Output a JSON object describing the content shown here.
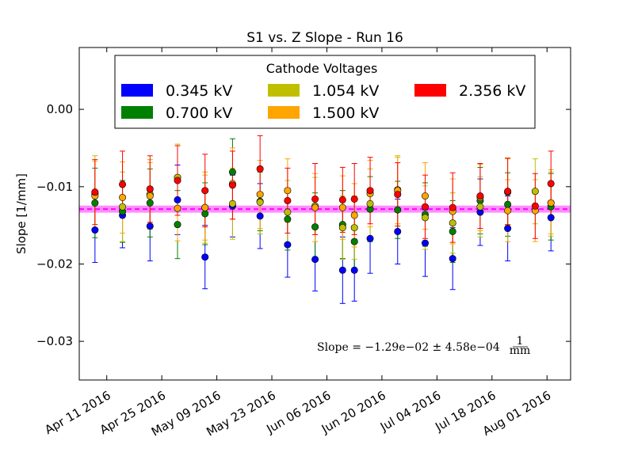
{
  "chart_data": {
    "type": "scatter",
    "title": "S1 vs. Z Slope - Run 16",
    "xlabel": "",
    "ylabel": "Slope [1/mm]",
    "ylim": [
      -0.035,
      0.008
    ],
    "xlim": [
      "2016-04-04",
      "2016-08-07"
    ],
    "y_ticks": [
      0.0,
      -0.01,
      -0.02,
      -0.03
    ],
    "y_tick_labels": [
      "0.00",
      "−0.01",
      "−0.02",
      "−0.03"
    ],
    "x_ticks": [
      "2016-04-11",
      "2016-04-25",
      "2016-05-09",
      "2016-05-23",
      "2016-06-06",
      "2016-06-20",
      "2016-07-04",
      "2016-07-18",
      "2016-08-01"
    ],
    "x_tick_labels": [
      "Apr 11 2016",
      "Apr 25 2016",
      "May 09 2016",
      "May 23 2016",
      "Jun 06 2016",
      "Jun 20 2016",
      "Jul 04 2016",
      "Jul 18 2016",
      "Aug 01 2016"
    ],
    "grid": false,
    "legend": {
      "title": "Cathode Voltages",
      "placement": "top",
      "columns": 3,
      "entries": [
        "0.345 kV",
        "0.700 kV",
        "1.054 kV",
        "1.500 kV",
        "2.356 kV"
      ]
    },
    "fit": {
      "value": -0.0129,
      "uncertainty": 0.000458,
      "color": "#ff00ff",
      "annotation": "Slope = −1.29e−02 ± 4.58e−04"
    },
    "series": [
      {
        "name": "0.345 kV",
        "color": "#0000ff",
        "points": [
          {
            "x": "2016-04-08",
            "y": -0.0156,
            "err": 0.0042
          },
          {
            "x": "2016-04-15",
            "y": -0.0137,
            "err": 0.0042
          },
          {
            "x": "2016-04-22",
            "y": -0.0151,
            "err": 0.0045
          },
          {
            "x": "2016-04-29",
            "y": -0.0117,
            "err": 0.0045
          },
          {
            "x": "2016-05-06",
            "y": -0.0191,
            "err": 0.0041
          },
          {
            "x": "2016-05-13",
            "y": -0.0125,
            "err": 0.004
          },
          {
            "x": "2016-05-20",
            "y": -0.0138,
            "err": 0.0042
          },
          {
            "x": "2016-05-27",
            "y": -0.0175,
            "err": 0.0042
          },
          {
            "x": "2016-06-03",
            "y": -0.0194,
            "err": 0.0041
          },
          {
            "x": "2016-06-10",
            "y": -0.0208,
            "err": 0.0043
          },
          {
            "x": "2016-06-13",
            "y": -0.0208,
            "err": 0.004
          },
          {
            "x": "2016-06-17",
            "y": -0.0167,
            "err": 0.0045
          },
          {
            "x": "2016-06-24",
            "y": -0.0158,
            "err": 0.0042
          },
          {
            "x": "2016-07-01",
            "y": -0.0173,
            "err": 0.0043
          },
          {
            "x": "2016-07-08",
            "y": -0.0193,
            "err": 0.004
          },
          {
            "x": "2016-07-15",
            "y": -0.0133,
            "err": 0.0043
          },
          {
            "x": "2016-07-22",
            "y": -0.0154,
            "err": 0.0042
          },
          {
            "x": "2016-08-02",
            "y": -0.014,
            "err": 0.0043
          }
        ]
      },
      {
        "name": "0.700 kV",
        "color": "#008000",
        "points": [
          {
            "x": "2016-04-08",
            "y": -0.0121,
            "err": 0.0045
          },
          {
            "x": "2016-04-15",
            "y": -0.0132,
            "err": 0.004
          },
          {
            "x": "2016-04-22",
            "y": -0.0121,
            "err": 0.0044
          },
          {
            "x": "2016-04-29",
            "y": -0.0149,
            "err": 0.0044
          },
          {
            "x": "2016-05-06",
            "y": -0.0135,
            "err": 0.004
          },
          {
            "x": "2016-05-13",
            "y": -0.0081,
            "err": 0.0043
          },
          {
            "x": "2016-05-20",
            "y": -0.0119,
            "err": 0.0038
          },
          {
            "x": "2016-05-27",
            "y": -0.0142,
            "err": 0.004
          },
          {
            "x": "2016-06-03",
            "y": -0.0152,
            "err": 0.0044
          },
          {
            "x": "2016-06-10",
            "y": -0.0149,
            "err": 0.0044
          },
          {
            "x": "2016-06-13",
            "y": -0.0171,
            "err": 0.0038
          },
          {
            "x": "2016-06-17",
            "y": -0.0129,
            "err": 0.0042
          },
          {
            "x": "2016-06-24",
            "y": -0.013,
            "err": 0.0037
          },
          {
            "x": "2016-07-01",
            "y": -0.0136,
            "err": 0.0041
          },
          {
            "x": "2016-07-08",
            "y": -0.0158,
            "err": 0.004
          },
          {
            "x": "2016-07-15",
            "y": -0.0118,
            "err": 0.0043
          },
          {
            "x": "2016-07-22",
            "y": -0.0123,
            "err": 0.0041
          },
          {
            "x": "2016-08-02",
            "y": -0.0126,
            "err": 0.0043
          }
        ]
      },
      {
        "name": "1.054 kV",
        "color": "#bfbf00",
        "points": [
          {
            "x": "2016-04-08",
            "y": -0.0109,
            "err": 0.0049
          },
          {
            "x": "2016-04-15",
            "y": -0.0126,
            "err": 0.0045
          },
          {
            "x": "2016-04-22",
            "y": -0.011,
            "err": 0.0045
          },
          {
            "x": "2016-04-29",
            "y": -0.0088,
            "err": 0.0043
          },
          {
            "x": "2016-05-06",
            "y": -0.0127,
            "err": 0.0046
          },
          {
            "x": "2016-05-13",
            "y": -0.0122,
            "err": 0.0046
          },
          {
            "x": "2016-05-20",
            "y": -0.012,
            "err": 0.0041
          },
          {
            "x": "2016-05-27",
            "y": -0.0133,
            "err": 0.0041
          },
          {
            "x": "2016-06-03",
            "y": -0.0125,
            "err": 0.0037
          },
          {
            "x": "2016-06-10",
            "y": -0.0153,
            "err": 0.0041
          },
          {
            "x": "2016-06-13",
            "y": -0.0153,
            "err": 0.0041
          },
          {
            "x": "2016-06-17",
            "y": -0.0122,
            "err": 0.0045
          },
          {
            "x": "2016-06-24",
            "y": -0.0104,
            "err": 0.0044
          },
          {
            "x": "2016-07-01",
            "y": -0.014,
            "err": 0.0041
          },
          {
            "x": "2016-07-08",
            "y": -0.0147,
            "err": 0.0039
          },
          {
            "x": "2016-07-15",
            "y": -0.0126,
            "err": 0.0039
          },
          {
            "x": "2016-07-22",
            "y": -0.0107,
            "err": 0.0043
          },
          {
            "x": "2016-07-29",
            "y": -0.0106,
            "err": 0.0042
          },
          {
            "x": "2016-08-02",
            "y": -0.0121,
            "err": 0.0043
          }
        ]
      },
      {
        "name": "1.500 kV",
        "color": "#ffa500",
        "points": [
          {
            "x": "2016-04-08",
            "y": -0.0112,
            "err": 0.0045
          },
          {
            "x": "2016-04-15",
            "y": -0.0114,
            "err": 0.0046
          },
          {
            "x": "2016-04-22",
            "y": -0.0112,
            "err": 0.0043
          },
          {
            "x": "2016-04-29",
            "y": -0.0128,
            "err": 0.0042
          },
          {
            "x": "2016-05-06",
            "y": -0.0127,
            "err": 0.0042
          },
          {
            "x": "2016-05-13",
            "y": -0.0096,
            "err": 0.0046
          },
          {
            "x": "2016-05-20",
            "y": -0.011,
            "err": 0.0044
          },
          {
            "x": "2016-05-27",
            "y": -0.0105,
            "err": 0.0041
          },
          {
            "x": "2016-06-03",
            "y": -0.0127,
            "err": 0.0044
          },
          {
            "x": "2016-06-10",
            "y": -0.0127,
            "err": 0.0041
          },
          {
            "x": "2016-06-13",
            "y": -0.0137,
            "err": 0.0041
          },
          {
            "x": "2016-06-17",
            "y": -0.0109,
            "err": 0.0043
          },
          {
            "x": "2016-06-24",
            "y": -0.0105,
            "err": 0.0043
          },
          {
            "x": "2016-07-01",
            "y": -0.0112,
            "err": 0.0043
          },
          {
            "x": "2016-07-08",
            "y": -0.0132,
            "err": 0.0042
          },
          {
            "x": "2016-07-15",
            "y": -0.0114,
            "err": 0.0043
          },
          {
            "x": "2016-07-22",
            "y": -0.0131,
            "err": 0.004
          },
          {
            "x": "2016-07-29",
            "y": -0.0131,
            "err": 0.004
          },
          {
            "x": "2016-08-02",
            "y": -0.0121,
            "err": 0.004
          }
        ]
      },
      {
        "name": "2.356 kV",
        "color": "#ff0000",
        "points": [
          {
            "x": "2016-04-08",
            "y": -0.0107,
            "err": 0.0042
          },
          {
            "x": "2016-04-15",
            "y": -0.0097,
            "err": 0.0043
          },
          {
            "x": "2016-04-22",
            "y": -0.0103,
            "err": 0.0043
          },
          {
            "x": "2016-04-29",
            "y": -0.0092,
            "err": 0.0045
          },
          {
            "x": "2016-05-06",
            "y": -0.0105,
            "err": 0.0047
          },
          {
            "x": "2016-05-13",
            "y": -0.0098,
            "err": 0.0044
          },
          {
            "x": "2016-05-20",
            "y": -0.0077,
            "err": 0.0043
          },
          {
            "x": "2016-05-27",
            "y": -0.0118,
            "err": 0.0042
          },
          {
            "x": "2016-06-03",
            "y": -0.0116,
            "err": 0.0046
          },
          {
            "x": "2016-06-10",
            "y": -0.0117,
            "err": 0.0042
          },
          {
            "x": "2016-06-13",
            "y": -0.0116,
            "err": 0.0046
          },
          {
            "x": "2016-06-17",
            "y": -0.0105,
            "err": 0.0043
          },
          {
            "x": "2016-06-24",
            "y": -0.011,
            "err": 0.0041
          },
          {
            "x": "2016-07-01",
            "y": -0.0126,
            "err": 0.0041
          },
          {
            "x": "2016-07-08",
            "y": -0.0127,
            "err": 0.0045
          },
          {
            "x": "2016-07-15",
            "y": -0.0112,
            "err": 0.0042
          },
          {
            "x": "2016-07-22",
            "y": -0.0106,
            "err": 0.0043
          },
          {
            "x": "2016-07-29",
            "y": -0.0125,
            "err": 0.0042
          },
          {
            "x": "2016-08-02",
            "y": -0.0096,
            "err": 0.0042
          }
        ]
      }
    ]
  }
}
